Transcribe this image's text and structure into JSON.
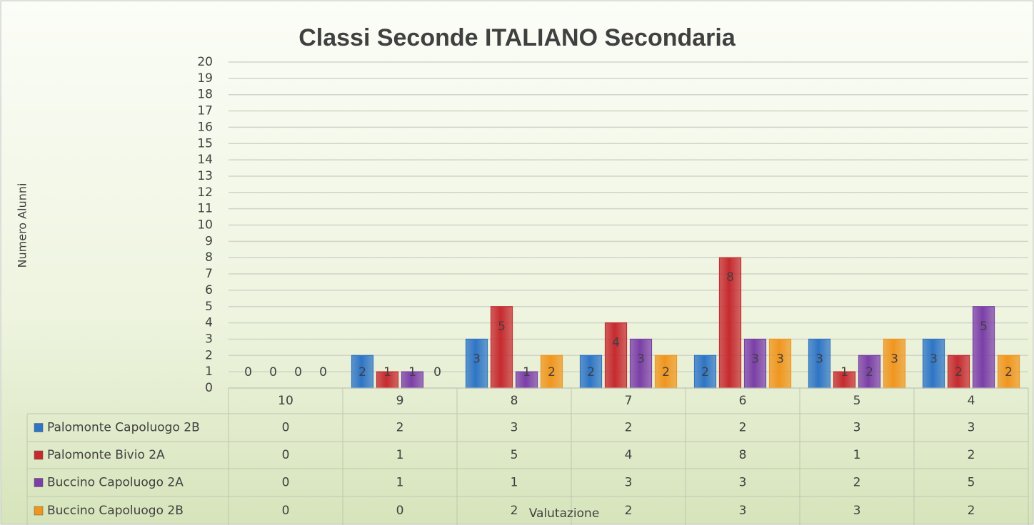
{
  "chart_data": {
    "type": "bar",
    "title": "Classi Seconde  ITALIANO  Secondaria",
    "y_label": "Numero Alunni",
    "x_label": "Valutazione",
    "categories": [
      "10",
      "9",
      "8",
      "7",
      "6",
      "5",
      "4"
    ],
    "series": [
      {
        "name": "Palomonte Capoluogo 2B",
        "color": "#2e75c6",
        "values": [
          0,
          2,
          3,
          2,
          2,
          3,
          3
        ]
      },
      {
        "name": "Palomonte Bivio 2A",
        "color": "#c62a2f",
        "values": [
          0,
          1,
          5,
          4,
          8,
          1,
          2
        ]
      },
      {
        "name": "Buccino Capoluogo 2A",
        "color": "#7b3fa8",
        "values": [
          0,
          1,
          1,
          3,
          3,
          2,
          5
        ]
      },
      {
        "name": "Buccino Capoluogo 2B",
        "color": "#f0961e",
        "values": [
          0,
          0,
          2,
          2,
          3,
          3,
          2
        ]
      }
    ],
    "ylim": [
      0,
      20
    ],
    "yticks": [
      0,
      1,
      2,
      3,
      4,
      5,
      6,
      7,
      8,
      9,
      10,
      11,
      12,
      13,
      14,
      15,
      16,
      17,
      18,
      19,
      20
    ],
    "grid": true,
    "data_table": true
  }
}
